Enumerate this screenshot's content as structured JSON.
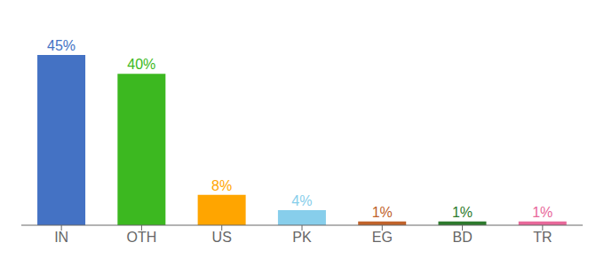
{
  "chart_data": {
    "type": "bar",
    "categories": [
      "IN",
      "OTH",
      "US",
      "PK",
      "EG",
      "BD",
      "TR"
    ],
    "values": [
      45,
      40,
      8,
      4,
      1,
      1,
      1
    ],
    "value_labels": [
      "45%",
      "40%",
      "8%",
      "4%",
      "1%",
      "1%",
      "1%"
    ],
    "colors": [
      "#4472C4",
      "#3CB820",
      "#FFA500",
      "#87CEEB",
      "#C0622A",
      "#2D7A2D",
      "#E8689A"
    ],
    "ylim": [
      0,
      52
    ],
    "data_labels": true,
    "tick_labels": "x",
    "grid": false
  }
}
